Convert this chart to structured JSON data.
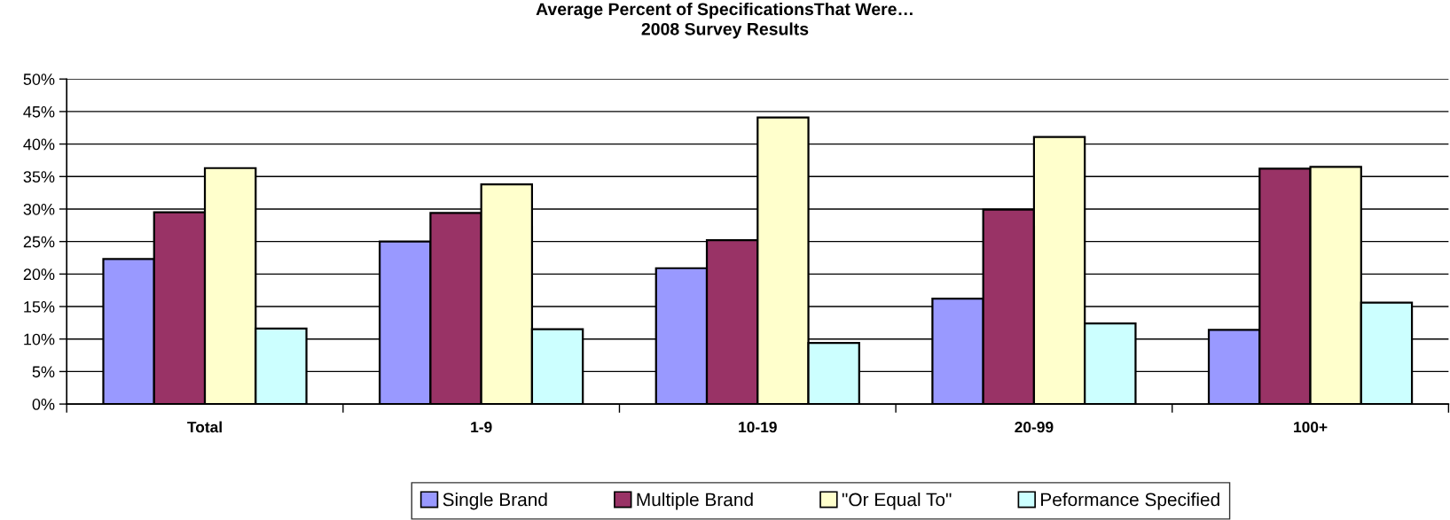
{
  "chart_data": {
    "type": "bar",
    "title": "Average Percent of SpecificationsThat Were…\n2008 Survey Results",
    "categories": [
      "Total",
      "1-9",
      "10-19",
      "20-99",
      "100+"
    ],
    "series": [
      {
        "name": "Single Brand",
        "color": "#9999ff",
        "values": [
          22.3,
          25.0,
          20.9,
          16.2,
          11.4
        ]
      },
      {
        "name": "Multiple Brand",
        "color": "#993366",
        "values": [
          29.5,
          29.4,
          25.2,
          29.9,
          36.2
        ]
      },
      {
        "name": "\"Or Equal To\"",
        "color": "#ffffcc",
        "values": [
          36.3,
          33.8,
          44.1,
          41.1,
          36.5
        ]
      },
      {
        "name": "Peformance Specified",
        "color": "#ccffff",
        "values": [
          11.6,
          11.5,
          9.4,
          12.4,
          15.6
        ]
      }
    ],
    "ylim": [
      0,
      50
    ],
    "yticks": [
      {
        "value": 0,
        "label": "0%"
      },
      {
        "value": 5,
        "label": "5%"
      },
      {
        "value": 10,
        "label": "10%"
      },
      {
        "value": 15,
        "label": "15%"
      },
      {
        "value": 20,
        "label": "20%"
      },
      {
        "value": 25,
        "label": "25%"
      },
      {
        "value": 30,
        "label": "30%"
      },
      {
        "value": 35,
        "label": "35%"
      },
      {
        "value": 40,
        "label": "40%"
      },
      {
        "value": 45,
        "label": "45%"
      },
      {
        "value": 50,
        "label": "50%"
      }
    ],
    "grid": "y",
    "legend": "bottom"
  }
}
